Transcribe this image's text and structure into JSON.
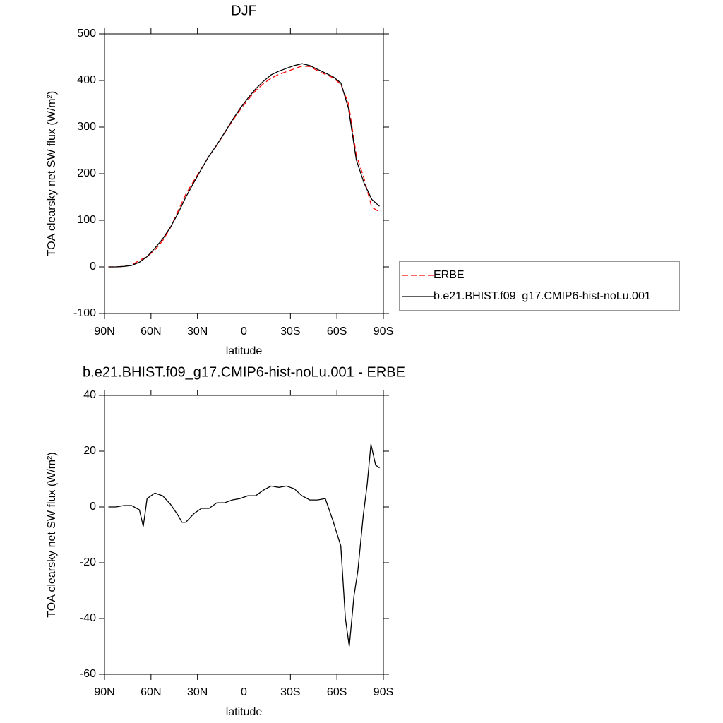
{
  "chart_data": [
    {
      "type": "line",
      "title": "DJF",
      "xlabel": "latitude",
      "ylabel": "TOA clearsky net SW flux (W/m²)",
      "x": [
        87.5,
        82.5,
        77.5,
        72.5,
        67.5,
        62.5,
        57.5,
        52.5,
        47.5,
        42.5,
        37.5,
        32.5,
        27.5,
        22.5,
        17.5,
        12.5,
        7.5,
        2.5,
        -2.5,
        -7.5,
        -12.5,
        -17.5,
        -22.5,
        -27.5,
        -32.5,
        -37.5,
        -42.5,
        -47.5,
        -52.5,
        -57.5,
        -62.5,
        -67.5,
        -72.5,
        -77.5,
        -82.5,
        -87.5
      ],
      "series": [
        {
          "name": "ERBE",
          "color": "#ff0000",
          "dash": "dashed",
          "values": [
            0,
            0,
            1,
            4,
            14,
            22,
            36,
            56,
            84,
            120,
            156,
            184,
            211,
            238,
            261,
            287,
            313,
            337,
            358,
            378,
            393,
            405,
            413,
            419,
            425,
            431,
            430,
            421,
            413,
            406,
            392,
            350,
            240,
            190,
            128,
            118
          ]
        },
        {
          "name": "b.e21.BHIST.f09_g17.CMIP6-hist-noLu.001",
          "color": "#000000",
          "dash": "solid",
          "values": [
            0,
            0,
            1,
            3,
            10,
            22,
            40,
            60,
            85,
            115,
            150,
            180,
            210,
            238,
            262,
            288,
            315,
            340,
            362,
            382,
            398,
            412,
            420,
            426,
            432,
            436,
            432,
            424,
            416,
            408,
            395,
            340,
            230,
            180,
            145,
            130
          ]
        }
      ],
      "xlim": [
        90,
        -90
      ],
      "xticks": [
        {
          "value": 90,
          "label": "90N"
        },
        {
          "value": 60,
          "label": "60N"
        },
        {
          "value": 30,
          "label": "30N"
        },
        0,
        {
          "value": -30,
          "label": "30S"
        },
        {
          "value": -60,
          "label": "60S"
        },
        {
          "value": -90,
          "label": "90S"
        }
      ],
      "ylim": [
        -100,
        500
      ],
      "yticks": [
        -100,
        0,
        100,
        200,
        300,
        400,
        500
      ],
      "legend": "right"
    },
    {
      "type": "line",
      "title": "b.e21.BHIST.f09_g17.CMIP6-hist-noLu.001 - ERBE",
      "xlabel": "latitude",
      "ylabel": "TOA clearsky net SW flux (W/m²)",
      "x": [
        87.5,
        82.5,
        77.5,
        72.5,
        67.5,
        65,
        62.5,
        57.5,
        52.5,
        47.5,
        42.5,
        40,
        37.5,
        32.5,
        27.5,
        22.5,
        17.5,
        12.5,
        7.5,
        2.5,
        -2.5,
        -7.5,
        -12.5,
        -17.5,
        -22.5,
        -27.5,
        -32.5,
        -37.5,
        -42.5,
        -47.5,
        -52.5,
        -57.5,
        -62.5,
        -65.5,
        -68,
        -71,
        -73.5,
        -77,
        -79.5,
        -82,
        -85,
        -87.5
      ],
      "values": [
        0,
        0,
        0.5,
        0.5,
        -1,
        -7,
        3,
        5,
        4,
        1,
        -3,
        -5.5,
        -5.5,
        -2.5,
        -0.5,
        -0.5,
        1.5,
        1.5,
        2.5,
        3,
        4,
        4,
        6,
        7.5,
        7,
        7.5,
        6.5,
        4,
        2.5,
        2.5,
        3,
        -5,
        -14,
        -40,
        -50,
        -32,
        -23,
        -3,
        8,
        22.5,
        15,
        14
      ],
      "color": "#000000",
      "xlim": [
        90,
        -90
      ],
      "xticks": [
        {
          "value": 90,
          "label": "90N"
        },
        {
          "value": 60,
          "label": "60N"
        },
        {
          "value": 30,
          "label": "30N"
        },
        0,
        {
          "value": -30,
          "label": "30S"
        },
        {
          "value": -60,
          "label": "60S"
        },
        {
          "value": -90,
          "label": "90S"
        }
      ],
      "ylim": [
        -60,
        40
      ],
      "yticks": [
        -60,
        -40,
        -20,
        0,
        20,
        40
      ]
    }
  ]
}
